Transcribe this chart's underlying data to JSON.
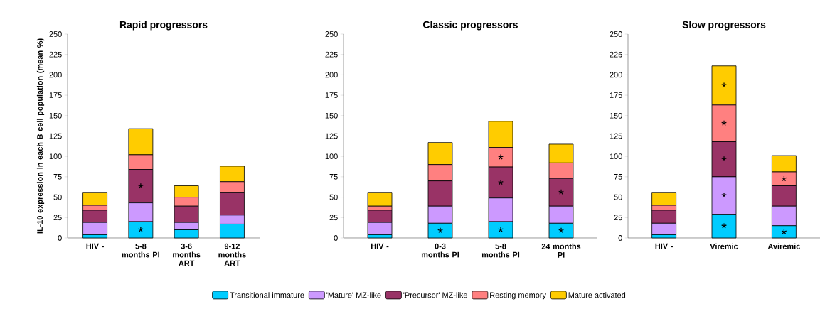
{
  "chart_data": [
    {
      "type": "bar",
      "stacked": true,
      "title": "Rapid progressors",
      "ylabel": "IL-10 expression in each B cell population (mean %)",
      "categories": [
        "HIV -",
        "5-8 months PI",
        "3-6 months ART",
        "9-12 months ART"
      ],
      "ylim": [
        0,
        250
      ],
      "yticks": [
        0,
        25,
        50,
        75,
        100,
        125,
        150,
        175,
        200,
        225,
        250
      ],
      "legend": "bottom",
      "series": [
        {
          "name": "Transitional immature",
          "color": "#00ccff",
          "values": [
            4,
            20,
            10,
            17
          ],
          "value_labels": [
            null,
            "*",
            null,
            null
          ]
        },
        {
          "name": "'Mature' MZ-like",
          "color": "#cc99ff",
          "values": [
            15,
            23,
            9,
            11
          ]
        },
        {
          "name": "'Precursor' MZ-like",
          "color": "#993366",
          "values": [
            15,
            41,
            20,
            28
          ],
          "value_labels": [
            null,
            "*",
            null,
            null
          ]
        },
        {
          "name": "Resting memory",
          "color": "#ff8080",
          "values": [
            6,
            18,
            11,
            13
          ]
        },
        {
          "name": "Mature activated",
          "color": "#ffcc00",
          "values": [
            16,
            32,
            14,
            19
          ]
        }
      ]
    },
    {
      "type": "bar",
      "stacked": true,
      "title": "Classic progressors",
      "categories": [
        "HIV -",
        "0-3 months PI",
        "5-8 months PI",
        "24 months PI"
      ],
      "ylim": [
        0,
        250
      ],
      "yticks": [
        0,
        25,
        50,
        75,
        100,
        125,
        150,
        175,
        200,
        225,
        250
      ],
      "series": [
        {
          "color": "#00ccff",
          "values": [
            4,
            18,
            20,
            18
          ],
          "value_labels": [
            null,
            "*",
            "*",
            "*"
          ]
        },
        {
          "color": "#cc99ff",
          "values": [
            15,
            21,
            29,
            21
          ]
        },
        {
          "color": "#993366",
          "values": [
            15,
            31,
            38,
            34
          ],
          "value_labels": [
            null,
            null,
            "*",
            "*"
          ]
        },
        {
          "color": "#ff8080",
          "values": [
            5,
            20,
            24,
            19
          ],
          "value_labels": [
            null,
            null,
            "*",
            null
          ]
        },
        {
          "color": "#ffcc00",
          "values": [
            17,
            27,
            32,
            23
          ]
        }
      ]
    },
    {
      "type": "bar",
      "stacked": true,
      "title": "Slow progressors",
      "categories": [
        "HIV -",
        "Viremic",
        "Aviremic"
      ],
      "ylim": [
        0,
        250
      ],
      "yticks": [
        0,
        25,
        50,
        75,
        100,
        125,
        150,
        175,
        200,
        225,
        250
      ],
      "series": [
        {
          "color": "#00ccff",
          "values": [
            4,
            29,
            15
          ],
          "value_labels": [
            null,
            "*",
            "*"
          ]
        },
        {
          "color": "#cc99ff",
          "values": [
            14,
            46,
            24
          ],
          "value_labels": [
            null,
            "*",
            null
          ]
        },
        {
          "color": "#993366",
          "values": [
            16,
            43,
            25
          ],
          "value_labels": [
            null,
            "*",
            null
          ]
        },
        {
          "color": "#ff8080",
          "values": [
            6,
            45,
            17
          ],
          "value_labels": [
            null,
            "*",
            "*"
          ]
        },
        {
          "color": "#ffcc00",
          "values": [
            16,
            48,
            20
          ],
          "value_labels": [
            null,
            "*",
            null
          ]
        }
      ]
    }
  ]
}
